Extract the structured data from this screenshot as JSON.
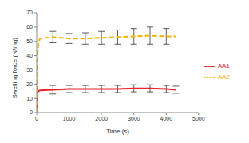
{
  "chart_data": {
    "type": "line",
    "x_label": "Time (s)",
    "y_label": "Swelling force (N/mg)",
    "xlim": [
      0,
      5000
    ],
    "xticks": [
      0,
      1000,
      2000,
      3000,
      4000,
      5000
    ],
    "ylim": [
      0,
      70
    ],
    "yticks": [
      0,
      10,
      20,
      30,
      40,
      50,
      60,
      70
    ],
    "grid": false,
    "legend": "right",
    "x": [
      0,
      20,
      50,
      100,
      500,
      1000,
      1500,
      2000,
      2500,
      3000,
      3500,
      4000,
      4300
    ],
    "series": [
      {
        "name": "AA1",
        "color": "#e8232a",
        "line_style": "solid",
        "marker": "none",
        "values": [
          0,
          14,
          15,
          15.5,
          16,
          16.5,
          16.5,
          16.5,
          16.5,
          17,
          17,
          16.5,
          16
        ],
        "errors": [
          null,
          null,
          null,
          null,
          3,
          2.5,
          2.5,
          2.5,
          2.5,
          2.5,
          2.5,
          2.5,
          2.5
        ]
      },
      {
        "name": "AA2",
        "color": "#f5b400",
        "line_style": "dashed",
        "marker": "none",
        "values": [
          0,
          40,
          48,
          52,
          53,
          52,
          52,
          52.5,
          53,
          53.5,
          54,
          53.5,
          53.5
        ],
        "errors": [
          null,
          null,
          null,
          null,
          4,
          3.5,
          4,
          4.5,
          5,
          5.5,
          6,
          5.5,
          null
        ]
      }
    ]
  }
}
